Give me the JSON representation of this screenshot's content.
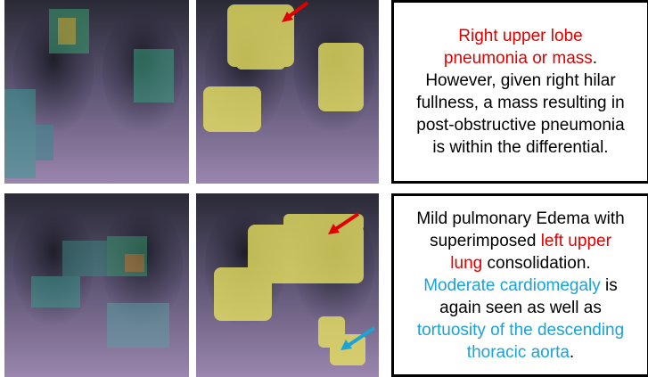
{
  "panels": [
    {
      "lines": [
        [
          {
            "text": "Right upper lobe",
            "color": "#e00000"
          }
        ],
        [
          {
            "text": "pneumonia or mass",
            "color": "#e00000"
          },
          {
            "text": ".",
            "color": "#000000"
          }
        ],
        [
          {
            "text": "However, given right hilar",
            "color": "#000000"
          }
        ],
        [
          {
            "text": "fullness, a mass resulting in",
            "color": "#000000"
          }
        ],
        [
          {
            "text": "post-obstructive pneumonia",
            "color": "#000000"
          }
        ],
        [
          {
            "text": "is within the differential.",
            "color": "#000000"
          }
        ]
      ]
    },
    {
      "lines": [
        [
          {
            "text": "Mild pulmonary Edema with",
            "color": "#000000"
          }
        ],
        [
          {
            "text": "superimposed ",
            "color": "#000000"
          },
          {
            "text": "left upper",
            "color": "#e00000"
          }
        ],
        [
          {
            "text": "lung",
            "color": "#e00000"
          },
          {
            "text": " consolidation.",
            "color": "#000000"
          }
        ],
        [
          {
            "text": "Moderate cardiomegaly",
            "color": "#1aa3d6"
          },
          {
            "text": " is",
            "color": "#000000"
          }
        ],
        [
          {
            "text": "again seen as well as",
            "color": "#000000"
          }
        ],
        [
          {
            "text": "tortuosity of the descending",
            "color": "#1aa3d6"
          }
        ],
        [
          {
            "text": "thoracic aorta",
            "color": "#1aa3d6"
          },
          {
            "text": ".",
            "color": "#000000"
          }
        ]
      ]
    }
  ]
}
